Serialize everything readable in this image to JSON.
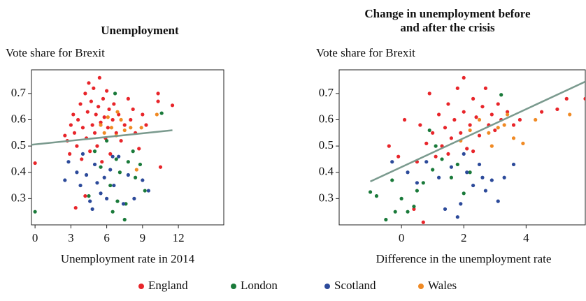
{
  "chart_data": [
    {
      "type": "scatter",
      "title": "Unemployment",
      "y_label": "Vote share for Brexit",
      "x_label": "Unemployment rate in 2014",
      "xlim": [
        -0.3,
        15.8
      ],
      "ylim": [
        0.2,
        0.79
      ],
      "xticks": [
        0,
        3,
        6,
        9,
        12
      ],
      "yticks": [
        0.3,
        0.4,
        0.5,
        0.6,
        0.7
      ],
      "series": [
        {
          "name": "England",
          "color": "#e8252a",
          "x": [
            0,
            2.5,
            2.7,
            2.9,
            3.0,
            3.2,
            3.3,
            3.5,
            3.6,
            3.8,
            3.9,
            4.0,
            4.2,
            4.3,
            4.4,
            4.5,
            4.6,
            4.7,
            4.8,
            4.9,
            5.0,
            5.1,
            5.2,
            5.3,
            5.4,
            5.5,
            5.6,
            5.7,
            5.8,
            5.9,
            6.0,
            6.1,
            6.2,
            6.3,
            6.5,
            6.6,
            6.8,
            7.0,
            7.2,
            7.5,
            7.8,
            8.0,
            8.2,
            8.4,
            8.7,
            9.0,
            9.3,
            10.3,
            10.3,
            10.5,
            11.5,
            3.4,
            4.2
          ],
          "values": [
            0.435,
            0.54,
            0.52,
            0.47,
            0.58,
            0.62,
            0.55,
            0.5,
            0.6,
            0.66,
            0.45,
            0.57,
            0.7,
            0.53,
            0.63,
            0.74,
            0.48,
            0.67,
            0.58,
            0.72,
            0.55,
            0.62,
            0.5,
            0.65,
            0.76,
            0.59,
            0.44,
            0.68,
            0.61,
            0.53,
            0.71,
            0.57,
            0.64,
            0.47,
            0.6,
            0.66,
            0.55,
            0.62,
            0.52,
            0.58,
            0.68,
            0.6,
            0.64,
            0.55,
            0.49,
            0.62,
            0.58,
            0.7,
            0.67,
            0.42,
            0.655,
            0.265,
            0.31
          ]
        },
        {
          "name": "London",
          "color": "#1a7a3a",
          "x": [
            0,
            4.5,
            5.0,
            5.5,
            6.0,
            6.3,
            6.5,
            6.7,
            6.9,
            7.1,
            7.5,
            7.6,
            7.8,
            8.2,
            8.4,
            8.8,
            9.2,
            10.6,
            6.8
          ],
          "values": [
            0.25,
            0.31,
            0.48,
            0.42,
            0.52,
            0.35,
            0.25,
            0.7,
            0.29,
            0.4,
            0.22,
            0.28,
            0.44,
            0.48,
            0.38,
            0.43,
            0.33,
            0.625,
            0.45
          ]
        },
        {
          "name": "Scotland",
          "color": "#2c4a9a",
          "x": [
            2.5,
            2.8,
            3.5,
            3.8,
            4.0,
            4.3,
            4.6,
            4.8,
            5.0,
            5.2,
            5.5,
            5.8,
            6.0,
            6.3,
            6.6,
            7.0,
            7.4,
            7.8,
            8.3,
            9.0,
            9.5,
            6.5
          ],
          "values": [
            0.37,
            0.44,
            0.4,
            0.35,
            0.47,
            0.39,
            0.29,
            0.26,
            0.43,
            0.36,
            0.32,
            0.38,
            0.3,
            0.41,
            0.35,
            0.46,
            0.28,
            0.39,
            0.3,
            0.37,
            0.33,
            0.46
          ]
        },
        {
          "name": "Wales",
          "color": "#f08a24",
          "x": [
            5.5,
            5.8,
            6.1,
            6.4,
            6.8,
            7.2,
            7.5,
            8.0,
            8.5,
            8.9,
            10.2,
            6.9
          ],
          "values": [
            0.58,
            0.55,
            0.61,
            0.57,
            0.54,
            0.6,
            0.56,
            0.57,
            0.41,
            0.57,
            0.62,
            0.63
          ]
        }
      ],
      "trend_line": {
        "color": "#7a9a8e",
        "x": [
          -0.3,
          11.5
        ],
        "values": [
          0.505,
          0.56
        ]
      }
    },
    {
      "type": "scatter",
      "title": "Change in unemployment before and after the crisis",
      "y_label": "Vote share for Brexit",
      "x_label": "Difference in the unemployment rate",
      "xlim": [
        -2,
        5.9
      ],
      "ylim": [
        0.2,
        0.79
      ],
      "xticks": [
        0,
        2,
        4
      ],
      "yticks": [
        0.3,
        0.4,
        0.5,
        0.6,
        0.7
      ],
      "series": [
        {
          "color": "#e8252a",
          "x": [
            -0.4,
            0.1,
            0.5,
            0.6,
            0.8,
            0.9,
            1.0,
            1.1,
            1.2,
            1.3,
            1.4,
            1.5,
            1.6,
            1.7,
            1.8,
            1.9,
            2.0,
            2.0,
            2.1,
            2.2,
            2.3,
            2.4,
            2.5,
            2.6,
            2.7,
            2.8,
            2.9,
            3.0,
            3.1,
            3.2,
            3.4,
            3.6,
            3.8,
            4.5,
            5.0,
            5.3,
            5.9,
            -0.1,
            0.7,
            0.4,
            1.5,
            2.3
          ],
          "values": [
            0.5,
            0.6,
            0.44,
            0.58,
            0.51,
            0.7,
            0.55,
            0.46,
            0.62,
            0.5,
            0.57,
            0.66,
            0.53,
            0.6,
            0.72,
            0.55,
            0.63,
            0.76,
            0.49,
            0.58,
            0.68,
            0.61,
            0.54,
            0.65,
            0.72,
            0.58,
            0.62,
            0.56,
            0.66,
            0.6,
            0.63,
            0.58,
            0.6,
            0.63,
            0.64,
            0.68,
            0.68,
            0.46,
            0.21,
            0.26,
            0.47,
            0.48
          ]
        },
        {
          "color": "#1a7a3a",
          "x": [
            -1.0,
            -0.8,
            -0.5,
            -0.2,
            0.0,
            0.2,
            0.4,
            0.5,
            0.7,
            0.9,
            1.1,
            1.3,
            1.6,
            1.8,
            2.0,
            2.2,
            3.2,
            1.0,
            -0.3
          ],
          "values": [
            0.325,
            0.31,
            0.22,
            0.25,
            0.3,
            0.25,
            0.27,
            0.33,
            0.36,
            0.56,
            0.5,
            0.45,
            0.38,
            0.43,
            0.32,
            0.4,
            0.695,
            0.41,
            0.37
          ]
        },
        {
          "color": "#2c4a9a",
          "x": [
            -0.3,
            0.2,
            0.5,
            0.8,
            1.2,
            1.4,
            1.6,
            1.8,
            1.9,
            2.1,
            2.3,
            2.5,
            2.7,
            2.9,
            3.1,
            3.3,
            3.6,
            2.0,
            2.6
          ],
          "values": [
            0.44,
            0.4,
            0.36,
            0.44,
            0.38,
            0.26,
            0.42,
            0.23,
            0.28,
            0.4,
            0.35,
            0.43,
            0.33,
            0.37,
            0.29,
            0.38,
            0.43,
            0.47,
            0.38
          ]
        },
        {
          "color": "#f08a24",
          "x": [
            1.9,
            2.2,
            2.5,
            2.8,
            3.1,
            3.4,
            3.6,
            3.9,
            4.3,
            5.4,
            2.9,
            3.3
          ],
          "values": [
            0.52,
            0.56,
            0.6,
            0.55,
            0.57,
            0.62,
            0.53,
            0.51,
            0.6,
            0.62,
            0.5,
            0.58
          ]
        }
      ],
      "trend_line": {
        "color": "#7a9a8e",
        "x": [
          -1,
          5.9
        ],
        "values": [
          0.365,
          0.745
        ]
      }
    }
  ]
}
